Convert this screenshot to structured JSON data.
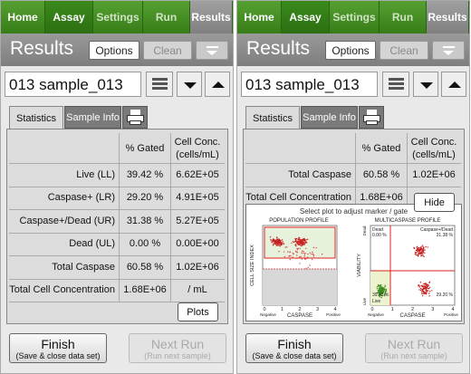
{
  "panels": [
    {
      "nav": [
        "Home",
        "Assay",
        "Settings",
        "Run",
        "Results"
      ],
      "header": {
        "title": "Results",
        "buttons": [
          "Options",
          "Clean"
        ]
      },
      "sample": "013 sample_013",
      "tabs": [
        "Statistics",
        "Sample Info"
      ],
      "table": {
        "columns": [
          "% Gated",
          "Cell Conc. (cells/mL)"
        ],
        "rows": [
          [
            "Live (LL)",
            "39.42 %",
            "6.62E+05"
          ],
          [
            "Caspase+ (LR)",
            "29.20 %",
            "4.91E+05"
          ],
          [
            "Caspase+/Dead (UR)",
            "31.38 %",
            "5.27E+05"
          ],
          [
            "Dead (UL)",
            "0.00 %",
            "0.00E+00"
          ],
          [
            "Total Caspase",
            "60.58 %",
            "1.02E+06"
          ],
          [
            "Total Cell Concentration",
            "1.68E+06",
            "/ mL"
          ]
        ]
      },
      "toggle": "Plots",
      "footer": [
        {
          "label": "Finish",
          "sub": "(Save & close data set)"
        },
        {
          "label": "Next Run",
          "sub": "(Run next sample)"
        }
      ]
    },
    {
      "nav": [
        "Home",
        "Assay",
        "Settings",
        "Run",
        "Results"
      ],
      "header": {
        "title": "Results",
        "buttons": [
          "Options",
          "Clean"
        ]
      },
      "sample": "013 sample_013",
      "tabs": [
        "Statistics",
        "Sample Info"
      ],
      "table": {
        "columns": [
          "% Gated",
          "Cell Conc. (cells/mL)"
        ],
        "rows": [
          [
            "Total Caspase",
            "60.58 %",
            "1.02E+06"
          ],
          [
            "Total Cell Concentration",
            "1.68E+06",
            "/ mL"
          ]
        ]
      },
      "toggle": "Hide",
      "plots": {
        "hint": "Select plot to adjust marker / gate",
        "population": {
          "title": "POPULATION PROFILE",
          "y_label": "CELL SIZE INDEX",
          "x_label": "CASPASE",
          "x_ticks": [
            0,
            1,
            2,
            3,
            4
          ],
          "x_ends": [
            "Negative",
            "Positive"
          ]
        },
        "multicaspase": {
          "title": "MULTICASPASE PROFILE",
          "y_label": "VIABILITY",
          "x_label": "CASPASE",
          "x_ticks": [
            0,
            1,
            2,
            3,
            4
          ],
          "x_ends": [
            "Negative",
            "Positive"
          ],
          "y_ends": [
            "Dead",
            "Live"
          ],
          "quadrants": {
            "ul": [
              "Dead",
              "0.00 %"
            ],
            "ur": [
              "Caspase+/Dead",
              "31.38 %"
            ],
            "ll": [
              "Live",
              "39.42 %"
            ],
            "lr": [
              "29.20 %"
            ]
          }
        }
      },
      "footer": [
        {
          "label": "Finish",
          "sub": "(Save & close data set)"
        },
        {
          "label": "Next Run",
          "sub": "(Run next sample)"
        }
      ]
    }
  ]
}
